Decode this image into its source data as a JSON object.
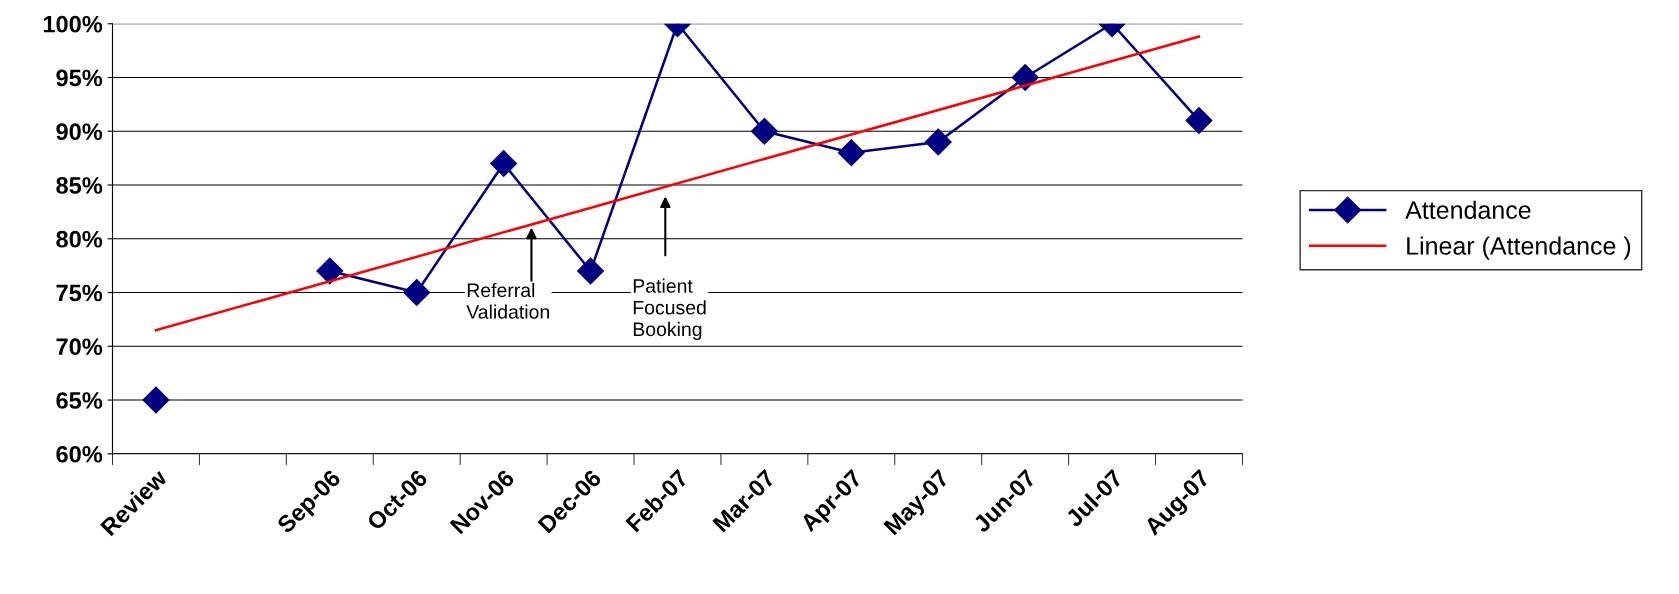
{
  "chart_data": {
    "type": "line",
    "categories": [
      "Review",
      null,
      "Sep-06",
      "Oct-06",
      "Nov-06",
      "Dec-06",
      "Feb-07",
      "Mar-07",
      "Apr-07",
      "May-07",
      "Jun-07",
      "Jul-07",
      "Aug-07"
    ],
    "series": [
      {
        "name": "Attendance",
        "color": "#000080",
        "marker": "diamond",
        "values": [
          65,
          null,
          77,
          75,
          87,
          77,
          100,
          90,
          88,
          89,
          95,
          100,
          91
        ]
      },
      {
        "name": "Linear (Attendance )",
        "type": "line",
        "color": "#ff0000",
        "marker": "none",
        "x": [
          "Review",
          "Aug-07"
        ],
        "values": [
          71.5,
          98.8
        ]
      }
    ],
    "ylim": [
      60,
      100
    ],
    "yticks": [
      {
        "value": 60,
        "label": "60%"
      },
      {
        "value": 65,
        "label": "65%"
      },
      {
        "value": 70,
        "label": "70%"
      },
      {
        "value": 75,
        "label": "75%"
      },
      {
        "value": 80,
        "label": "80%"
      },
      {
        "value": 85,
        "label": "85%"
      },
      {
        "value": 90,
        "label": "90%"
      },
      {
        "value": 95,
        "label": "95%"
      },
      {
        "value": 100,
        "label": "100%"
      }
    ],
    "annotations": [
      {
        "text": "Referral\nValidation",
        "y": 81.3
      },
      "Patient\nFocused\nBooking"
    ],
    "grid": "y",
    "legend": "right",
    "line_style": "solid"
  }
}
